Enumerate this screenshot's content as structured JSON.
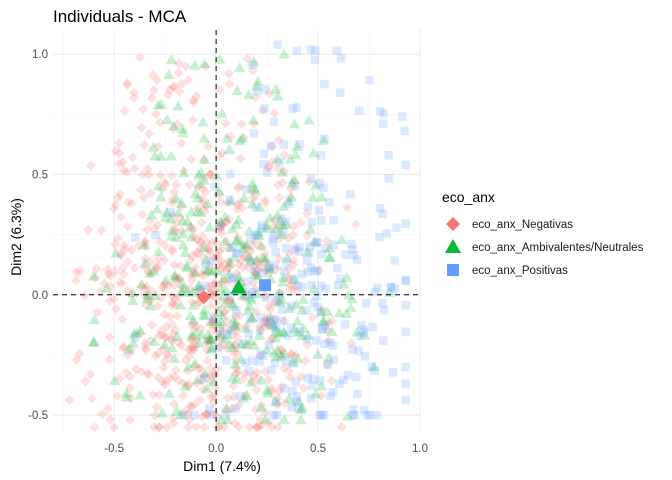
{
  "chart_data": {
    "type": "scatter",
    "title": "Individuals - MCA",
    "xlabel": "Dim1 (7.4%)",
    "ylabel": "Dim2 (6.3%)",
    "xlim": [
      -0.8,
      1.0
    ],
    "ylim": [
      -0.57,
      1.1
    ],
    "x_ticks": [
      -0.5,
      0.0,
      0.5,
      1.0
    ],
    "x_tick_labels": [
      "-0.5",
      "0.0",
      "0.5",
      "1.0"
    ],
    "y_ticks": [
      -0.5,
      0.0,
      0.5,
      1.0
    ],
    "y_tick_labels": [
      "-0.5",
      "0.0",
      "0.5",
      "1.0"
    ],
    "reference_lines": {
      "x": 0,
      "y": 0,
      "style": "dashed"
    },
    "grid": true,
    "legend": {
      "title": "eco_anx",
      "placement": "right"
    },
    "series": [
      {
        "name": "eco_anx_Negativas",
        "shape": "diamond",
        "color": "#F8766D",
        "center": [
          -0.06,
          -0.01
        ],
        "spread": {
          "x_range": [
            -0.72,
            0.78
          ],
          "y_range": [
            -0.55,
            1.05
          ]
        }
      },
      {
        "name": "eco_anx_Ambivalentes/Neutrales",
        "shape": "triangle",
        "color": "#00BA38",
        "center": [
          0.11,
          0.03
        ],
        "spread": {
          "x_range": [
            -0.6,
            0.85
          ],
          "y_range": [
            -0.52,
            1.0
          ]
        }
      },
      {
        "name": "eco_anx_Positivas",
        "shape": "square",
        "color": "#619CFF",
        "center": [
          0.24,
          0.04
        ],
        "spread": {
          "x_range": [
            -0.4,
            0.93
          ],
          "y_range": [
            -0.5,
            1.07
          ]
        }
      }
    ]
  }
}
